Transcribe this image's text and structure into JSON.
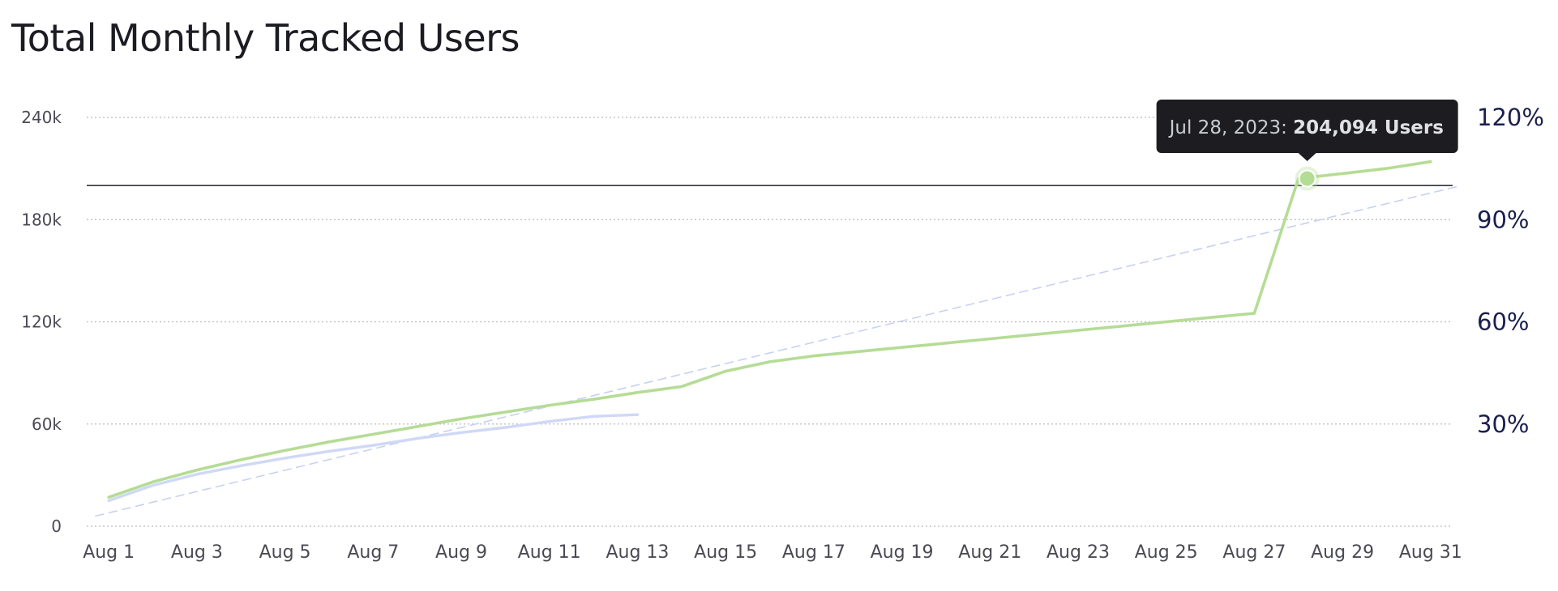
{
  "title": "Total Monthly Tracked Users",
  "colors": {
    "actual": "#b5dc95",
    "previous": "#cfd8f6",
    "projection": "#c8d1f1",
    "threshold": "#33333a",
    "grid": "#b9b9c0",
    "tooltip_bg": "#1c1c21"
  },
  "tooltip": {
    "date": "Jul 28, 2023",
    "sep": ": ",
    "value": "204,094 Users",
    "x": 28.2
  },
  "chart_data": {
    "type": "line",
    "title": "Total Monthly Tracked Users",
    "xlabel": "",
    "ylabel": "",
    "ylim": [
      0,
      240000
    ],
    "xlim": [
      0.5,
      31.5
    ],
    "grid": true,
    "x_ticks": [
      1,
      3,
      5,
      7,
      9,
      11,
      13,
      15,
      17,
      19,
      21,
      23,
      25,
      27,
      29,
      31
    ],
    "x_tick_labels": [
      "Aug 1",
      "Aug 3",
      "Aug 5",
      "Aug 7",
      "Aug 9",
      "Aug 11",
      "Aug 13",
      "Aug 15",
      "Aug 17",
      "Aug 19",
      "Aug 21",
      "Aug 23",
      "Aug 25",
      "Aug 27",
      "Aug 29",
      "Aug 31"
    ],
    "y_ticks": [
      0,
      60000,
      120000,
      180000,
      240000
    ],
    "y_tick_labels": [
      "0",
      "60k",
      "120k",
      "180k",
      "240k"
    ],
    "y2_ticks": [
      30,
      60,
      90,
      120
    ],
    "y2_tick_labels": [
      "30%",
      "60%",
      "90%",
      "120%"
    ],
    "y2lim": [
      0,
      120
    ],
    "threshold": 200000,
    "series": [
      {
        "role": "actual",
        "style": "solid",
        "x": [
          1,
          2,
          3,
          4,
          5,
          6,
          7,
          8,
          9,
          10,
          11,
          12,
          13,
          14,
          15,
          16,
          17,
          18,
          19,
          20,
          21,
          22,
          23,
          24,
          25,
          26,
          27,
          28,
          29,
          30,
          31
        ],
        "y": [
          17000,
          26000,
          33000,
          39000,
          44500,
          49500,
          54000,
          58500,
          63000,
          67000,
          71000,
          74500,
          78500,
          82000,
          91000,
          96500,
          100000,
          102500,
          105000,
          107500,
          110000,
          112500,
          115000,
          117500,
          120000,
          122500,
          125000,
          204094,
          207000,
          210000,
          214000
        ]
      },
      {
        "role": "previous",
        "style": "solid",
        "x": [
          1,
          2,
          3,
          4,
          5,
          6,
          7,
          8,
          9,
          10,
          11,
          12,
          13
        ],
        "y": [
          15000,
          24000,
          30500,
          35500,
          40000,
          44000,
          47500,
          51500,
          55000,
          58000,
          61500,
          64500,
          65500
        ]
      },
      {
        "role": "projection",
        "style": "dashed",
        "x": [
          0.7,
          31.7
        ],
        "y": [
          6000,
          200000
        ]
      }
    ]
  }
}
